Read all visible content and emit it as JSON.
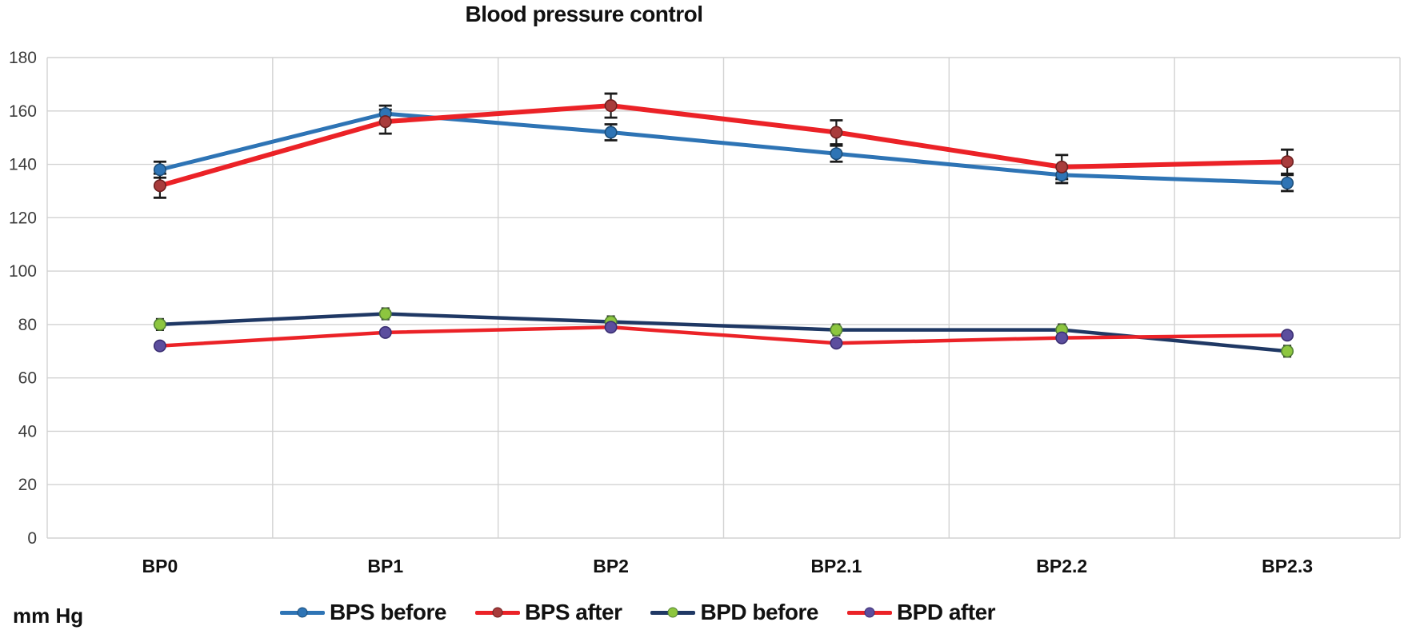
{
  "chart_data": {
    "type": "line",
    "title": "Blood pressure control",
    "ylabel": "mm Hg",
    "xlabel": "",
    "ylim": [
      0,
      180
    ],
    "ytick_step": 20,
    "yticks": [
      180,
      160,
      140,
      120,
      100,
      80,
      60,
      40,
      20,
      0
    ],
    "grid": true,
    "legend_position": "bottom",
    "categories": [
      "BP0",
      "BP1",
      "BP2",
      "BP2.1",
      "BP2.2",
      "BP2.3"
    ],
    "series": [
      {
        "name": "BPS before",
        "values": [
          138,
          159,
          152,
          144,
          136,
          133
        ],
        "error": 3,
        "line_color": "#2E74B5",
        "marker_color": "#2E74B5",
        "marker_stroke": "#1D4E79"
      },
      {
        "name": "BPS after",
        "values": [
          132,
          156,
          162,
          152,
          139,
          141
        ],
        "error": 4.5,
        "line_color": "#EB2227",
        "marker_color": "#A83C3C",
        "marker_stroke": "#6E2020"
      },
      {
        "name": "BPD before",
        "values": [
          80,
          84,
          81,
          78,
          78,
          70
        ],
        "error": 2,
        "line_color": "#1F3864",
        "marker_color": "#8DC63F",
        "marker_stroke": "#538135"
      },
      {
        "name": "BPD after",
        "values": [
          72,
          77,
          79,
          73,
          75,
          76
        ],
        "error": 1.5,
        "line_color": "#EB2227",
        "marker_color": "#5C4E9E",
        "marker_stroke": "#3B2F73"
      }
    ],
    "error_bar_color": "#1A1A1A",
    "gridline_color": "#D2D2D2",
    "tick_label_color": "#3C3C3C",
    "category_label_color": "#111111"
  }
}
